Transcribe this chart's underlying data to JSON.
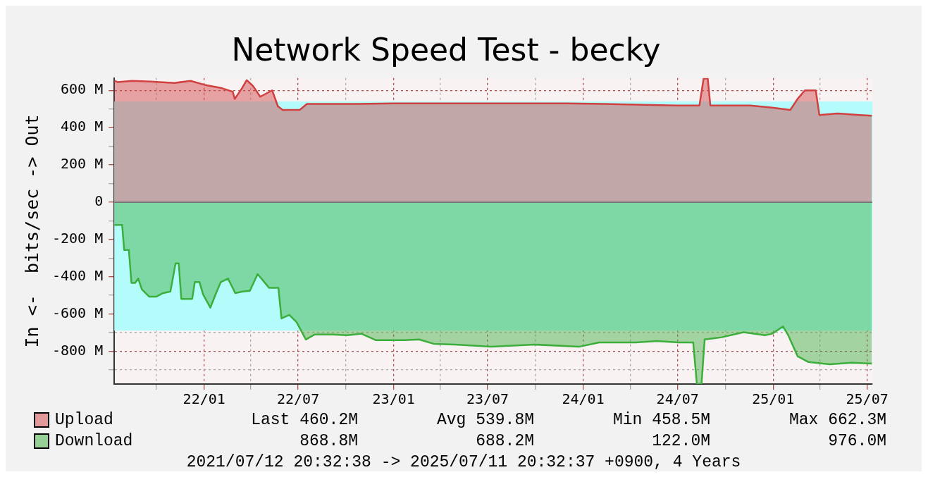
{
  "chart_data": {
    "type": "area",
    "title": "Network Speed Test - becky",
    "ylabel": "In <-  bits/sec -> Out",
    "xlim": [
      "2021-07-12",
      "2025-07-11"
    ],
    "xticks": [
      {
        "value": "2021-10-01",
        "label": null
      },
      {
        "value": "2022-01-01",
        "label": "22/01"
      },
      {
        "value": "2022-04-01",
        "label": null
      },
      {
        "value": "2022-07-01",
        "label": "22/07"
      },
      {
        "value": "2022-10-01",
        "label": null
      },
      {
        "value": "2023-01-01",
        "label": "23/01"
      },
      {
        "value": "2023-04-01",
        "label": null
      },
      {
        "value": "2023-07-01",
        "label": "23/07"
      },
      {
        "value": "2023-10-01",
        "label": null
      },
      {
        "value": "2024-01-01",
        "label": "24/01"
      },
      {
        "value": "2024-04-01",
        "label": null
      },
      {
        "value": "2024-07-01",
        "label": "24/07"
      },
      {
        "value": "2024-10-01",
        "label": null
      },
      {
        "value": "2025-01-01",
        "label": "25/01"
      },
      {
        "value": "2025-04-01",
        "label": null
      },
      {
        "value": "2025-07-01",
        "label": "25/07"
      }
    ],
    "ylim": [
      -976,
      666
    ],
    "yticks": [
      {
        "value": -900,
        "label": null
      },
      {
        "value": -800,
        "label": "-800 M"
      },
      {
        "value": -700,
        "label": null
      },
      {
        "value": -600,
        "label": "-600 M"
      },
      {
        "value": -500,
        "label": null
      },
      {
        "value": -400,
        "label": "-400 M"
      },
      {
        "value": -300,
        "label": null
      },
      {
        "value": -200,
        "label": "-200 M"
      },
      {
        "value": -100,
        "label": null
      },
      0,
      {
        "value": 100,
        "label": null
      },
      {
        "value": 200,
        "label": "200 M"
      },
      {
        "value": 300,
        "label": null
      },
      {
        "value": 400,
        "label": "400 M"
      },
      {
        "value": 500,
        "label": null
      },
      {
        "value": 600,
        "label": "600 M"
      }
    ],
    "grid": true,
    "legend": "bottom",
    "bands": [
      {
        "axis": "y",
        "from": -690,
        "to": 540,
        "color": "#b4fcfc"
      }
    ],
    "ref_lines": [
      {
        "axis": "y",
        "value": 0,
        "color": "#777777"
      }
    ],
    "series": [
      {
        "name": "Upload",
        "color": "#d04040",
        "x": [
          "2021-07-12",
          "2021-07-19",
          "2021-08-15",
          "2021-09-20",
          "2021-11-05",
          "2021-12-06",
          "2022-01-04",
          "2022-02-04",
          "2022-02-25",
          "2022-03-01",
          "2022-03-15",
          "2022-03-24",
          "2022-04-05",
          "2022-04-19",
          "2022-05-12",
          "2022-05-23",
          "2022-06-01",
          "2022-07-04",
          "2022-07-18",
          "2022-10-13",
          "2023-01-01",
          "2023-07-15",
          "2023-12-01",
          "2024-02-10",
          "2024-06-30",
          "2024-08-12",
          "2024-08-20",
          "2024-08-28",
          "2024-09-02",
          "2024-11-18",
          "2024-12-30",
          "2025-02-03",
          "2025-02-17",
          "2025-03-03",
          "2025-03-24",
          "2025-03-31",
          "2025-05-05",
          "2025-06-17",
          "2025-07-10"
        ],
        "values": [
          651,
          644,
          651,
          647,
          640,
          651,
          628,
          612,
          593,
          554,
          612,
          655,
          624,
          566,
          600,
          515,
          495,
          495,
          527,
          527,
          530,
          530,
          530,
          527,
          519,
          519,
          663,
          663,
          519,
          519,
          507,
          495,
          554,
          600,
          600,
          468,
          476,
          468,
          464
        ]
      },
      {
        "name": "Download",
        "color": "#3cae3c",
        "x": [
          "2021-07-12",
          "2021-07-27",
          "2021-07-31",
          "2021-08-09",
          "2021-08-14",
          "2021-08-21",
          "2021-08-27",
          "2021-09-03",
          "2021-09-17",
          "2021-10-01",
          "2021-10-14",
          "2021-10-28",
          "2021-11-07",
          "2021-11-13",
          "2021-11-18",
          "2021-12-09",
          "2021-12-14",
          "2021-12-23",
          "2021-12-30",
          "2022-01-13",
          "2022-01-24",
          "2022-02-02",
          "2022-02-16",
          "2022-03-02",
          "2022-03-16",
          "2022-03-30",
          "2022-04-14",
          "2022-04-27",
          "2022-05-06",
          "2022-05-24",
          "2022-05-30",
          "2022-06-14",
          "2022-06-28",
          "2022-07-16",
          "2022-08-02",
          "2022-09-06",
          "2022-10-03",
          "2022-10-31",
          "2022-11-28",
          "2023-01-22",
          "2023-02-19",
          "2023-03-19",
          "2023-04-29",
          "2023-07-08",
          "2023-09-29",
          "2023-12-24",
          "2024-02-01",
          "2024-04-11",
          "2024-05-22",
          "2024-07-03",
          "2024-07-31",
          "2024-08-07",
          "2024-08-16",
          "2024-08-22",
          "2024-09-24",
          "2024-11-05",
          "2024-12-16",
          "2024-12-30",
          "2025-01-20",
          "2025-01-30",
          "2025-02-17",
          "2025-03-10",
          "2025-04-20",
          "2025-06-01",
          "2025-07-10"
        ],
        "values": [
          -122,
          -122,
          -257,
          -257,
          -433,
          -433,
          -410,
          -468,
          -507,
          -507,
          -488,
          -480,
          -328,
          -328,
          -519,
          -519,
          -429,
          -429,
          -495,
          -566,
          -488,
          -429,
          -410,
          -488,
          -480,
          -476,
          -386,
          -429,
          -460,
          -460,
          -624,
          -605,
          -644,
          -737,
          -710,
          -710,
          -714,
          -706,
          -741,
          -741,
          -737,
          -760,
          -764,
          -776,
          -764,
          -776,
          -753,
          -753,
          -745,
          -753,
          -753,
          -975,
          -975,
          -737,
          -725,
          -698,
          -714,
          -706,
          -667,
          -714,
          -827,
          -858,
          -870,
          -862,
          -866
        ]
      }
    ],
    "annotations": [
      "Last 460.2M",
      "Avg 539.8M",
      "Min 458.5M",
      "Max 662.3M",
      "868.8M",
      "688.2M",
      "122.0M",
      "976.0M",
      "2021/07/12 20:32:38 -> 2025/07/11 20:32:37 +0900, 4 Years"
    ]
  }
}
